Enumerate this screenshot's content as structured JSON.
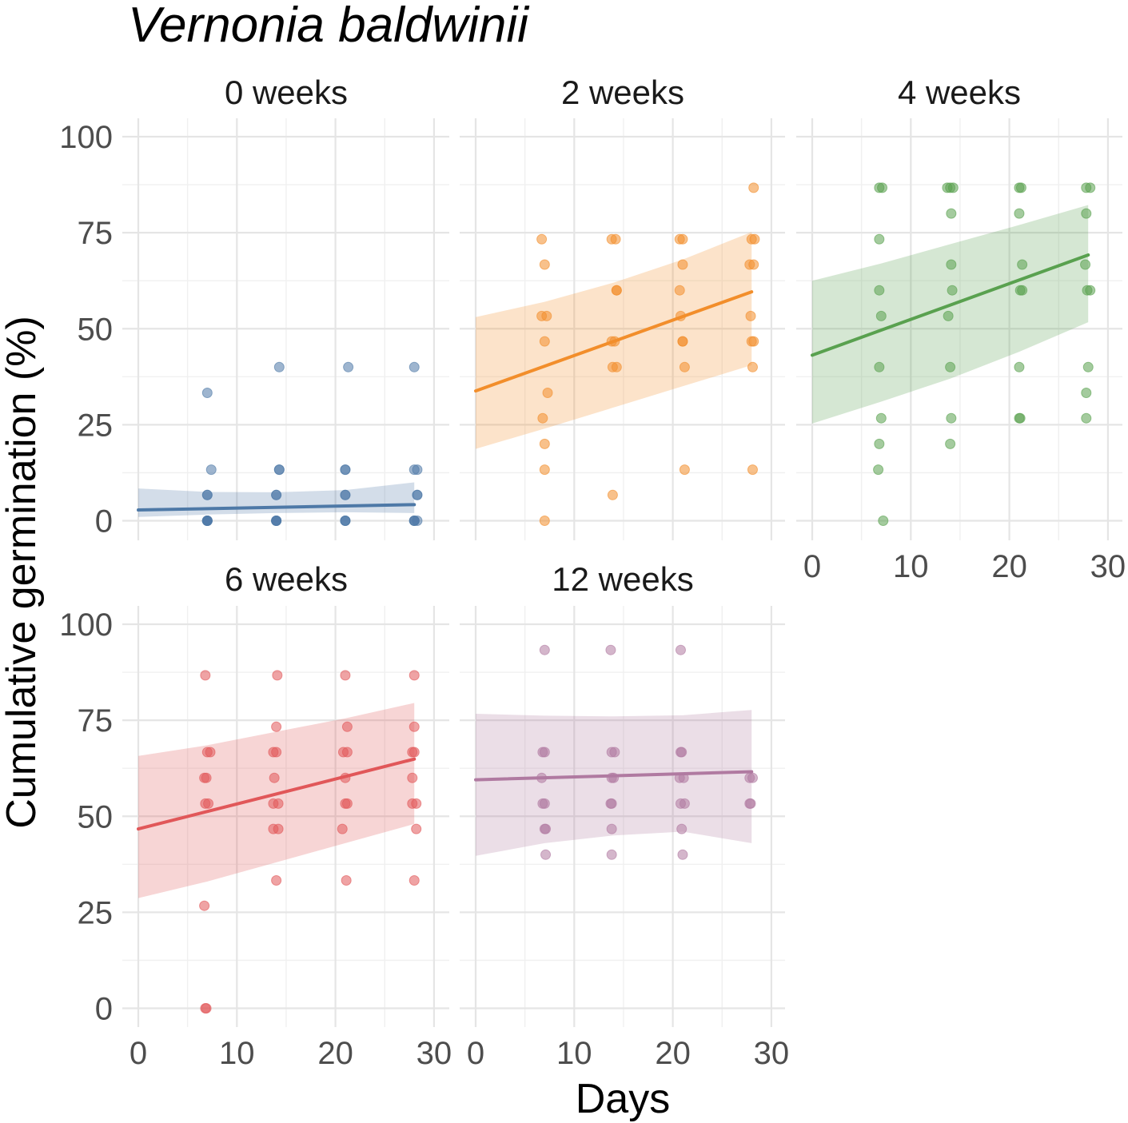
{
  "chart_data": {
    "type": "scatter",
    "title": "Vernonia baldwinii",
    "xlabel": "Days",
    "ylabel": "Cumulative germination (%)",
    "xlim": [
      0,
      30
    ],
    "ylim": [
      0,
      100
    ],
    "x_ticks": [
      "0",
      "10",
      "20",
      "30"
    ],
    "y_ticks": [
      "0",
      "25",
      "50",
      "75",
      "100"
    ],
    "grid": true,
    "panels": [
      {
        "name": "0 weeks",
        "color": "#4e79a7",
        "points": [
          [
            7,
            33.3
          ],
          [
            7,
            6.7
          ],
          [
            7,
            6.7
          ],
          [
            7,
            0
          ],
          [
            7,
            0
          ],
          [
            7,
            0
          ],
          [
            7,
            0
          ],
          [
            7,
            0
          ],
          [
            7.4,
            13.3
          ],
          [
            14,
            6.7
          ],
          [
            14,
            6.7
          ],
          [
            14,
            0
          ],
          [
            14,
            0
          ],
          [
            14,
            0
          ],
          [
            14,
            0
          ],
          [
            14.3,
            13.3
          ],
          [
            14.3,
            13.3
          ],
          [
            14.3,
            40
          ],
          [
            21,
            13.3
          ],
          [
            21,
            13.3
          ],
          [
            21,
            6.7
          ],
          [
            21,
            6.7
          ],
          [
            21,
            0
          ],
          [
            21,
            0
          ],
          [
            21,
            0
          ],
          [
            21.3,
            40
          ],
          [
            28,
            13.3
          ],
          [
            28,
            0
          ],
          [
            28,
            0
          ],
          [
            28,
            0
          ],
          [
            28,
            40
          ],
          [
            28.3,
            13.3
          ],
          [
            28.3,
            6.7
          ],
          [
            28.3,
            6.7
          ],
          [
            28.3,
            0
          ]
        ],
        "fit": {
          "x": [
            0,
            28
          ],
          "y": [
            2.8,
            4.2
          ]
        },
        "band": {
          "x": [
            0,
            7,
            14,
            21,
            28
          ],
          "upper": [
            8.4,
            7.5,
            7.4,
            8.0,
            10.0
          ],
          "lower": [
            1.0,
            1.6,
            2.0,
            2.2,
            2.0
          ]
        }
      },
      {
        "name": "2 weeks",
        "color": "#f28e2b",
        "points": [
          [
            6.7,
            73.3
          ],
          [
            7,
            66.7
          ],
          [
            6.7,
            53.3
          ],
          [
            7.2,
            53.3
          ],
          [
            7,
            46.7
          ],
          [
            7.3,
            33.3
          ],
          [
            6.8,
            26.7
          ],
          [
            7,
            20
          ],
          [
            7,
            13.3
          ],
          [
            7,
            0
          ],
          [
            13.8,
            73.3
          ],
          [
            14.2,
            73.3
          ],
          [
            14.3,
            60
          ],
          [
            14.3,
            60
          ],
          [
            13.8,
            46.7
          ],
          [
            14.1,
            46.7
          ],
          [
            13.9,
            40
          ],
          [
            14.3,
            40
          ],
          [
            13.9,
            6.7
          ],
          [
            20.7,
            73.3
          ],
          [
            21,
            73.3
          ],
          [
            20.7,
            60
          ],
          [
            21,
            66.7
          ],
          [
            20.8,
            53.3
          ],
          [
            21,
            46.7
          ],
          [
            21,
            46.7
          ],
          [
            21.2,
            40
          ],
          [
            21.2,
            13.3
          ],
          [
            28.2,
            86.7
          ],
          [
            28,
            73.3
          ],
          [
            28.3,
            73.3
          ],
          [
            27.8,
            66.7
          ],
          [
            28.2,
            66.7
          ],
          [
            27.9,
            53.3
          ],
          [
            28,
            46.7
          ],
          [
            28.2,
            46.7
          ],
          [
            28.1,
            40
          ],
          [
            28.1,
            13.3
          ]
        ],
        "fit": {
          "x": [
            0,
            28
          ],
          "y": [
            33.8,
            59.6
          ]
        },
        "band": {
          "x": [
            0,
            7,
            14,
            21,
            28
          ],
          "upper": [
            53.0,
            57.0,
            62.0,
            68.0,
            75.2
          ],
          "lower": [
            18.7,
            24.0,
            29.5,
            35.0,
            40.5
          ]
        }
      },
      {
        "name": "4 weeks",
        "color": "#59a14f",
        "points": [
          [
            6.8,
            86.7
          ],
          [
            7.1,
            86.7
          ],
          [
            6.8,
            73.3
          ],
          [
            6.8,
            60
          ],
          [
            7,
            53.3
          ],
          [
            6.8,
            40
          ],
          [
            7,
            26.7
          ],
          [
            6.8,
            20
          ],
          [
            6.7,
            13.3
          ],
          [
            7.2,
            0
          ],
          [
            13.7,
            86.7
          ],
          [
            14,
            86.7
          ],
          [
            14.3,
            86.7
          ],
          [
            14.1,
            80
          ],
          [
            14.1,
            66.7
          ],
          [
            14.2,
            60
          ],
          [
            13.8,
            53.3
          ],
          [
            14,
            40
          ],
          [
            14.1,
            26.7
          ],
          [
            14,
            20
          ],
          [
            21,
            86.7
          ],
          [
            21.2,
            86.7
          ],
          [
            21,
            80
          ],
          [
            21.3,
            66.7
          ],
          [
            21.1,
            60
          ],
          [
            21.3,
            60
          ],
          [
            21,
            40
          ],
          [
            21,
            26.7
          ],
          [
            21.1,
            26.7
          ],
          [
            27.8,
            86.7
          ],
          [
            28.2,
            86.7
          ],
          [
            27.8,
            80
          ],
          [
            27.7,
            66.7
          ],
          [
            27.9,
            60
          ],
          [
            28.2,
            60
          ],
          [
            28,
            40
          ],
          [
            27.8,
            33.3
          ],
          [
            27.8,
            26.7
          ]
        ],
        "fit": {
          "x": [
            0,
            28
          ],
          "y": [
            43.1,
            69.2
          ]
        },
        "band": {
          "x": [
            0,
            7,
            14,
            21,
            28
          ],
          "upper": [
            62.5,
            67.0,
            72.0,
            77.0,
            82.2
          ],
          "lower": [
            25.3,
            31.0,
            37.0,
            44.0,
            51.7
          ]
        }
      },
      {
        "name": "6 weeks",
        "color": "#e15759",
        "points": [
          [
            6.8,
            86.7
          ],
          [
            7,
            66.7
          ],
          [
            7.3,
            66.7
          ],
          [
            6.7,
            60
          ],
          [
            6.9,
            60
          ],
          [
            6.8,
            53.3
          ],
          [
            7.1,
            53.3
          ],
          [
            6.7,
            26.7
          ],
          [
            6.8,
            0
          ],
          [
            6.9,
            0
          ],
          [
            13.7,
            66.7
          ],
          [
            14,
            66.7
          ],
          [
            14.1,
            86.7
          ],
          [
            14,
            73.3
          ],
          [
            13.8,
            60
          ],
          [
            13.7,
            53.3
          ],
          [
            14.2,
            53.3
          ],
          [
            13.7,
            46.7
          ],
          [
            14.2,
            46.7
          ],
          [
            14,
            33.3
          ],
          [
            20.8,
            66.7
          ],
          [
            21.2,
            66.7
          ],
          [
            21,
            86.7
          ],
          [
            21.2,
            73.3
          ],
          [
            21,
            60
          ],
          [
            21,
            53.3
          ],
          [
            21.2,
            53.3
          ],
          [
            20.7,
            46.7
          ],
          [
            21.1,
            33.3
          ],
          [
            28,
            66.7
          ],
          [
            27.8,
            66.7
          ],
          [
            28,
            86.7
          ],
          [
            28,
            73.3
          ],
          [
            27.8,
            60
          ],
          [
            27.8,
            53.3
          ],
          [
            28.2,
            53.3
          ],
          [
            28.2,
            46.7
          ],
          [
            28,
            33.3
          ]
        ],
        "fit": {
          "x": [
            0,
            28
          ],
          "y": [
            46.7,
            64.9
          ]
        },
        "band": {
          "x": [
            0,
            7,
            14,
            21,
            28
          ],
          "upper": [
            65.7,
            68.5,
            72.0,
            75.5,
            79.5
          ],
          "lower": [
            28.7,
            33.0,
            38.0,
            43.0,
            48.0
          ]
        }
      },
      {
        "name": "12 weeks",
        "color": "#b07aa1",
        "points": [
          [
            7,
            93.3
          ],
          [
            6.8,
            66.7
          ],
          [
            7,
            66.7
          ],
          [
            6.7,
            60
          ],
          [
            6.8,
            53.3
          ],
          [
            7,
            53.3
          ],
          [
            7,
            46.7
          ],
          [
            7.1,
            46.7
          ],
          [
            7.1,
            40
          ],
          [
            13.7,
            93.3
          ],
          [
            13.8,
            66.7
          ],
          [
            14.1,
            66.7
          ],
          [
            13.8,
            60
          ],
          [
            14,
            60
          ],
          [
            13.7,
            53.3
          ],
          [
            13.8,
            53.3
          ],
          [
            13.8,
            46.7
          ],
          [
            13.8,
            40
          ],
          [
            20.8,
            93.3
          ],
          [
            20.8,
            66.7
          ],
          [
            20.9,
            66.7
          ],
          [
            20.7,
            60
          ],
          [
            21.1,
            60
          ],
          [
            20.8,
            53.3
          ],
          [
            21.2,
            53.3
          ],
          [
            20.9,
            46.7
          ],
          [
            21,
            40
          ],
          [
            27.8,
            60
          ],
          [
            28.1,
            60
          ],
          [
            27.8,
            53.3
          ],
          [
            27.9,
            53.3
          ]
        ],
        "fit": {
          "x": [
            0,
            28
          ],
          "y": [
            59.5,
            61.6
          ]
        },
        "band": {
          "x": [
            0,
            7,
            14,
            21,
            28
          ],
          "upper": [
            76.7,
            76.2,
            76.0,
            76.3,
            77.7
          ],
          "lower": [
            39.7,
            43.0,
            45.0,
            46.0,
            43.0
          ]
        }
      }
    ]
  }
}
